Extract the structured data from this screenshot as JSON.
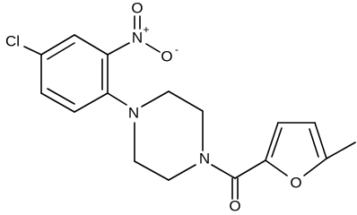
{
  "atoms": [
    {
      "label": "Cl"
    },
    {
      "label": "N",
      "charge": "+"
    },
    {
      "label": "O"
    },
    {
      "label": "O",
      "charge": "-"
    },
    {
      "label": "N"
    },
    {
      "label": "N"
    },
    {
      "label": "O"
    },
    {
      "label": "O"
    }
  ]
}
